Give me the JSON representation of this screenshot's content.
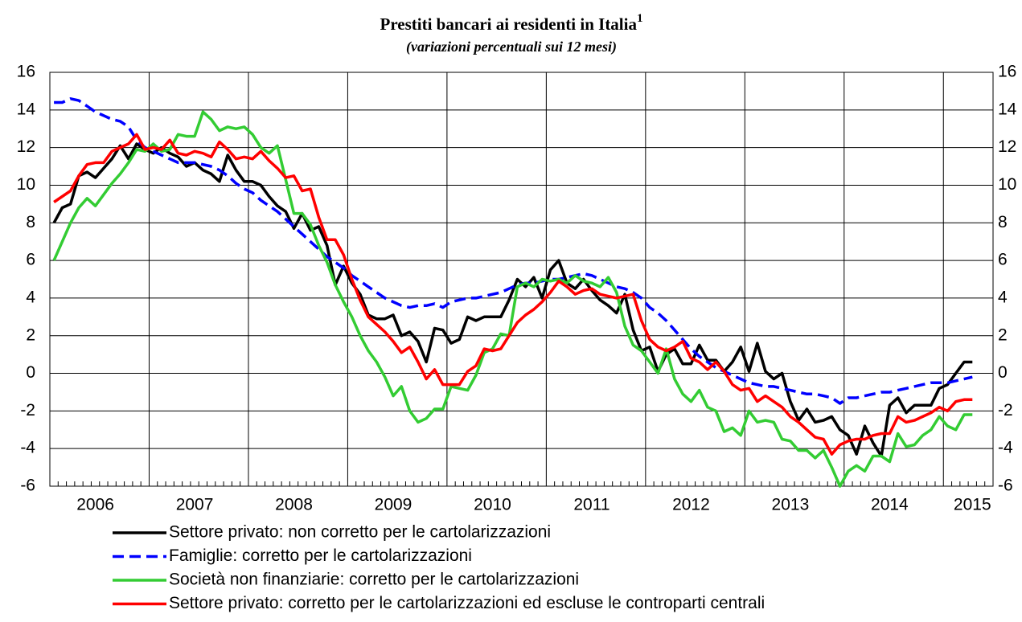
{
  "chart_data": {
    "type": "line",
    "title": "Prestiti bancari ai residenti in Italia",
    "title_superscript": "1",
    "subtitle": "(variazioni percentuali sui 12 mesi)",
    "categories": [
      null,
      null,
      null,
      null,
      null,
      "2006",
      null,
      null,
      null,
      null,
      null,
      null,
      null,
      null,
      null,
      null,
      null,
      "2007",
      null,
      null,
      null,
      null,
      null,
      null,
      null,
      null,
      null,
      null,
      null,
      "2008",
      null,
      null,
      null,
      null,
      null,
      null,
      null,
      null,
      null,
      null,
      null,
      "2009",
      null,
      null,
      null,
      null,
      null,
      null,
      null,
      null,
      null,
      null,
      null,
      "2010",
      null,
      null,
      null,
      null,
      null,
      null,
      null,
      null,
      null,
      null,
      null,
      "2011",
      null,
      null,
      null,
      null,
      null,
      null,
      null,
      null,
      null,
      null,
      null,
      "2012",
      null,
      null,
      null,
      null,
      null,
      null,
      null,
      null,
      null,
      null,
      null,
      "2013",
      null,
      null,
      null,
      null,
      null,
      null,
      null,
      null,
      null,
      null,
      null,
      "2014",
      null,
      null,
      null,
      null,
      null,
      null,
      null,
      null,
      null,
      "2015",
      null,
      null
    ],
    "series": [
      {
        "name": "Settore privato: non corretto per le cartolarizzazioni",
        "color": "#000000",
        "dash": false,
        "values": [
          8.0,
          8.8,
          9.0,
          10.5,
          10.7,
          10.4,
          10.9,
          11.4,
          12.1,
          11.4,
          12.2,
          11.9,
          11.7,
          12.0,
          11.7,
          11.5,
          11.0,
          11.2,
          10.8,
          10.6,
          10.2,
          11.6,
          10.8,
          10.2,
          10.2,
          10.0,
          9.4,
          8.9,
          8.6,
          7.7,
          8.5,
          7.6,
          7.8,
          6.8,
          4.7,
          5.7,
          4.8,
          4.2,
          3.1,
          2.9,
          2.9,
          3.1,
          2.0,
          2.2,
          1.7,
          0.6,
          2.4,
          2.3,
          1.6,
          1.8,
          3.0,
          2.8,
          3.0,
          3.0,
          3.0,
          3.9,
          5.0,
          4.6,
          5.1,
          4.0,
          5.5,
          6.0,
          4.8,
          4.5,
          5.0,
          4.4,
          3.9,
          3.6,
          3.2,
          4.2,
          2.3,
          1.2,
          1.4,
          0.1,
          1.0,
          1.3,
          0.5,
          0.5,
          1.5,
          0.7,
          0.7,
          0.1,
          0.6,
          1.4,
          0.1,
          1.6,
          0.1,
          -0.3,
          0.0,
          -1.5,
          -2.5,
          -1.9,
          -2.6,
          -2.5,
          -2.3,
          -3.0,
          -3.3,
          -4.3,
          -2.8,
          -3.7,
          -4.4,
          -1.7,
          -1.3,
          -2.1,
          -1.7,
          -1.7,
          -1.7,
          -0.8,
          -0.6,
          0.0,
          0.6,
          0.6,
          null,
          null
        ]
      },
      {
        "name": "Famiglie: corretto per le cartolarizzazioni",
        "color": "#0000ff",
        "dash": true,
        "values": [
          14.4,
          14.4,
          14.6,
          14.5,
          14.2,
          13.9,
          13.7,
          13.5,
          13.4,
          13.1,
          12.4,
          12.0,
          11.8,
          11.6,
          11.4,
          11.2,
          11.2,
          11.2,
          11.1,
          11.0,
          10.8,
          10.5,
          10.1,
          9.8,
          9.6,
          9.2,
          8.9,
          8.6,
          8.2,
          7.8,
          7.4,
          7.0,
          6.6,
          6.2,
          5.9,
          5.6,
          5.2,
          4.9,
          4.6,
          4.3,
          4.0,
          3.8,
          3.6,
          3.5,
          3.6,
          3.6,
          3.7,
          3.5,
          3.8,
          3.9,
          4.0,
          4.0,
          4.1,
          4.2,
          4.3,
          4.5,
          4.7,
          4.8,
          4.8,
          4.9,
          5.0,
          5.0,
          5.1,
          5.2,
          5.3,
          5.2,
          5.0,
          4.8,
          4.6,
          4.5,
          4.3,
          4.0,
          3.5,
          3.2,
          2.8,
          2.3,
          1.8,
          1.3,
          0.9,
          0.6,
          0.3,
          0.1,
          -0.1,
          -0.3,
          -0.5,
          -0.6,
          -0.7,
          -0.7,
          -0.8,
          -0.9,
          -1.0,
          -1.1,
          -1.1,
          -1.2,
          -1.3,
          -1.6,
          -1.3,
          -1.3,
          -1.2,
          -1.1,
          -1.0,
          -1.0,
          -0.9,
          -0.8,
          -0.7,
          -0.6,
          -0.5,
          -0.5,
          -0.5,
          -0.4,
          -0.3,
          -0.2,
          null,
          null
        ]
      },
      {
        "name": "Società non finanziarie: corretto per le cartolarizzazioni",
        "color": "#33cc33",
        "dash": false,
        "values": [
          6.0,
          7.0,
          8.0,
          8.8,
          9.3,
          8.9,
          9.5,
          10.1,
          10.6,
          11.2,
          11.9,
          11.8,
          12.2,
          11.8,
          11.9,
          12.7,
          12.6,
          12.6,
          13.9,
          13.5,
          12.9,
          13.1,
          13.0,
          13.1,
          12.7,
          12.0,
          11.7,
          12.1,
          10.3,
          8.5,
          8.5,
          7.9,
          6.8,
          5.9,
          4.7,
          3.8,
          3.0,
          2.0,
          1.2,
          0.6,
          -0.2,
          -1.2,
          -0.7,
          -2.0,
          -2.6,
          -2.4,
          -1.9,
          -1.9,
          -0.7,
          -0.8,
          -0.9,
          -0.1,
          1.1,
          1.3,
          2.1,
          2.0,
          4.6,
          4.8,
          4.6,
          5.0,
          4.9,
          5.0,
          4.8,
          5.2,
          4.9,
          4.8,
          4.6,
          5.1,
          4.3,
          2.5,
          1.5,
          1.2,
          0.6,
          0.0,
          1.3,
          -0.3,
          -1.1,
          -1.5,
          -0.9,
          -1.8,
          -2.0,
          -3.1,
          -2.9,
          -3.3,
          -2.0,
          -2.6,
          -2.5,
          -2.6,
          -3.5,
          -3.6,
          -4.1,
          -4.1,
          -4.5,
          -4.1,
          -5.0,
          -6.0,
          -5.2,
          -4.9,
          -5.2,
          -4.4,
          -4.4,
          -4.7,
          -3.2,
          -3.9,
          -3.8,
          -3.3,
          -3.0,
          -2.3,
          -2.8,
          -3.0,
          -2.2,
          -2.2,
          null,
          null
        ]
      },
      {
        "name": "Settore privato: corretto per le cartolarizzazioni ed escluse le controparti centrali",
        "color": "#ff0000",
        "dash": false,
        "values": [
          9.1,
          9.4,
          9.7,
          10.5,
          11.1,
          11.2,
          11.2,
          11.8,
          12.0,
          12.2,
          12.7,
          11.9,
          12.0,
          11.9,
          12.4,
          11.7,
          11.6,
          11.8,
          11.7,
          11.5,
          12.3,
          11.9,
          11.4,
          11.5,
          11.4,
          11.8,
          11.3,
          10.9,
          10.4,
          10.5,
          9.7,
          9.8,
          8.3,
          7.1,
          7.1,
          6.3,
          5.0,
          3.9,
          3.0,
          2.6,
          2.2,
          1.7,
          1.1,
          1.4,
          0.6,
          -0.3,
          0.2,
          -0.6,
          -0.6,
          -0.6,
          0.1,
          0.4,
          1.3,
          1.2,
          1.3,
          2.0,
          2.7,
          3.1,
          3.4,
          3.8,
          4.3,
          4.9,
          4.6,
          4.2,
          4.4,
          4.5,
          4.2,
          4.1,
          4.0,
          4.1,
          4.2,
          2.8,
          1.8,
          1.4,
          1.2,
          1.4,
          1.7,
          0.8,
          0.6,
          0.2,
          0.6,
          0.1,
          -0.6,
          -0.9,
          -0.8,
          -1.5,
          -1.2,
          -1.5,
          -1.8,
          -2.3,
          -2.6,
          -3.0,
          -3.4,
          -3.5,
          -4.3,
          -3.8,
          -3.6,
          -3.5,
          -3.5,
          -3.3,
          -3.2,
          -3.2,
          -2.3,
          -2.6,
          -2.5,
          -2.3,
          -2.1,
          -1.8,
          -2.0,
          -1.5,
          -1.4,
          -1.4,
          null,
          null
        ]
      }
    ],
    "ylim": [
      -6,
      16
    ],
    "yticks": [
      -6,
      -4,
      -2,
      0,
      2,
      4,
      6,
      8,
      10,
      12,
      14,
      16
    ],
    "grid": true
  }
}
